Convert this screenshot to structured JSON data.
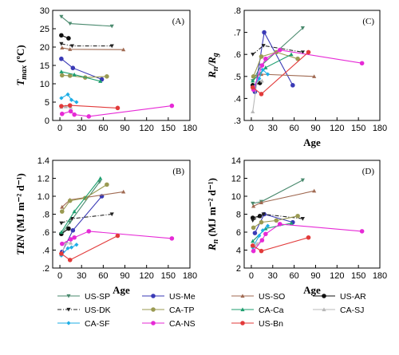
{
  "chart_data": {
    "type": "line",
    "series_styles": [
      {
        "name": "US-SP",
        "color": "#4a8a6e",
        "dash": "",
        "marker": "tri-down"
      },
      {
        "name": "US-Me",
        "color": "#3a3ab6",
        "dash": "",
        "marker": "circle"
      },
      {
        "name": "US-SO",
        "color": "#a06a52",
        "dash": "",
        "marker": "tri-up"
      },
      {
        "name": "US-AR",
        "color": "#111111",
        "dash": "",
        "marker": "circle"
      },
      {
        "name": "US-DK",
        "color": "#222222",
        "dash": "5,2,1,2",
        "marker": "tri-down"
      },
      {
        "name": "CA-TP",
        "color": "#9a9a52",
        "dash": "",
        "marker": "circle"
      },
      {
        "name": "CA-Ca",
        "color": "#1c9e6e",
        "dash": "",
        "marker": "tri-up"
      },
      {
        "name": "CA-SJ",
        "color": "#b8b8b8",
        "dash": "",
        "marker": "tri-up"
      },
      {
        "name": "CA-SF",
        "color": "#1eaee6",
        "dash": "",
        "marker": "diamond"
      },
      {
        "name": "CA-NS",
        "color": "#e62ad6",
        "dash": "",
        "marker": "circle"
      },
      {
        "name": "US-Bn",
        "color": "#e23a3a",
        "dash": "",
        "marker": "circle"
      }
    ],
    "panels": [
      {
        "id": "A",
        "panel_label": "(A)",
        "ylabel_main": "T",
        "ylabel_sub": "max",
        "ylabel_unit": " (ºC)",
        "xlabel": "",
        "xlim": [
          -10,
          180
        ],
        "ylim": [
          0,
          30
        ],
        "yticks": [
          "0",
          "5",
          "10",
          "15",
          "20",
          "25",
          "30"
        ],
        "ytick_values": [
          0,
          5,
          10,
          15,
          20,
          25,
          30
        ],
        "xticks": [
          "0",
          "30",
          "60",
          "90",
          "120",
          "150",
          "180"
        ],
        "xtick_values": [
          0,
          30,
          60,
          90,
          120,
          150,
          180
        ],
        "series": [
          {
            "name": "US-SP",
            "x": [
              2,
              14,
              72
            ],
            "y": [
              28.3,
              26.4,
              25.7
            ]
          },
          {
            "name": "US-Me",
            "x": [
              2,
              18,
              58
            ],
            "y": [
              16.8,
              14.3,
              11.2
            ]
          },
          {
            "name": "US-SO",
            "x": [
              3,
              14,
              88
            ],
            "y": [
              19.8,
              19.4,
              19.3
            ]
          },
          {
            "name": "US-AR",
            "x": [
              2,
              12
            ],
            "y": [
              23.2,
              22.4
            ]
          },
          {
            "name": "US-DK",
            "x": [
              2,
              17,
              72
            ],
            "y": [
              20.9,
              20.3,
              20.3
            ]
          },
          {
            "name": "CA-TP",
            "x": [
              3,
              14,
              35,
              65
            ],
            "y": [
              12.3,
              12.2,
              11.7,
              12.0
            ]
          },
          {
            "name": "CA-Ca",
            "x": [
              2,
              20,
              56
            ],
            "y": [
              13.3,
              12.5,
              10.7
            ]
          },
          {
            "name": "CA-SJ",
            "x": [
              2,
              8,
              15
            ],
            "y": [
              3.6,
              3.8,
              3.6
            ]
          },
          {
            "name": "CA-SF",
            "x": [
              2,
              11,
              16,
              23
            ],
            "y": [
              6.1,
              7.1,
              5.6,
              5.0
            ]
          },
          {
            "name": "CA-NS",
            "x": [
              3,
              15,
              20,
              40,
              155
            ],
            "y": [
              1.8,
              2.5,
              1.6,
              1.1,
              4.0
            ]
          },
          {
            "name": "US-Bn",
            "x": [
              2,
              14,
              80
            ],
            "y": [
              3.9,
              4.1,
              3.4
            ]
          }
        ]
      },
      {
        "id": "C",
        "panel_label": "(C)",
        "ylabel_main": "R",
        "ylabel_sub": "n",
        "ylabel_mid": "/R",
        "ylabel_sub2": "g",
        "ylabel_unit": "",
        "xlabel": "Age",
        "xlim": [
          -10,
          180
        ],
        "ylim": [
          0.3,
          0.8
        ],
        "yticks": [
          ".3",
          ".4",
          ".5",
          ".6",
          ".7",
          ".8"
        ],
        "ytick_values": [
          0.3,
          0.4,
          0.5,
          0.6,
          0.7,
          0.8
        ],
        "xticks": [
          "0",
          "30",
          "60",
          "90",
          "120",
          "150",
          "180"
        ],
        "xtick_values": [
          0,
          30,
          60,
          90,
          120,
          150,
          180
        ],
        "series": [
          {
            "name": "US-SP",
            "x": [
              2,
              14,
              72
            ],
            "y": [
              0.48,
              0.55,
              0.72
            ]
          },
          {
            "name": "US-Me",
            "x": [
              5,
              18,
              58
            ],
            "y": [
              0.43,
              0.7,
              0.46
            ]
          },
          {
            "name": "US-SO",
            "x": [
              3,
              14,
              88
            ],
            "y": [
              0.5,
              0.51,
              0.5
            ]
          },
          {
            "name": "US-AR",
            "x": [
              2,
              12
            ],
            "y": [
              0.46,
              0.47
            ]
          },
          {
            "name": "US-DK",
            "x": [
              2,
              17,
              72
            ],
            "y": [
              0.6,
              0.64,
              0.61
            ]
          },
          {
            "name": "CA-TP",
            "x": [
              3,
              14,
              35,
              65
            ],
            "y": [
              0.5,
              0.59,
              0.61,
              0.58
            ]
          },
          {
            "name": "CA-Ca",
            "x": [
              2,
              20,
              56
            ],
            "y": [
              0.48,
              0.54,
              0.6
            ]
          },
          {
            "name": "CA-SJ",
            "x": [
              2,
              8,
              15
            ],
            "y": [
              0.34,
              0.48,
              0.48
            ]
          },
          {
            "name": "CA-SF",
            "x": [
              2,
              11,
              16,
              23
            ],
            "y": [
              0.45,
              0.49,
              0.53,
              0.51
            ]
          },
          {
            "name": "CA-NS",
            "x": [
              3,
              15,
              20,
              40,
              155
            ],
            "y": [
              0.44,
              0.55,
              0.58,
              0.62,
              0.56
            ]
          },
          {
            "name": "US-Bn",
            "x": [
              2,
              14,
              80
            ],
            "y": [
              0.45,
              0.42,
              0.61
            ]
          }
        ]
      },
      {
        "id": "B",
        "panel_label": "(B)",
        "ylabel_main": "TRN",
        "ylabel_sub": "",
        "ylabel_unit": " (MJ m⁻² d⁻¹)",
        "xlabel": "Age",
        "xlim": [
          -10,
          180
        ],
        "ylim": [
          0.2,
          1.4
        ],
        "yticks": [
          ".2",
          ".4",
          ".6",
          ".8",
          "1.0",
          "1.2",
          "1.4"
        ],
        "ytick_values": [
          0.2,
          0.4,
          0.6,
          0.8,
          1.0,
          1.2,
          1.4
        ],
        "xticks": [
          "0",
          "30",
          "60",
          "90",
          "120",
          "150",
          "180"
        ],
        "xtick_values": [
          0,
          30,
          60,
          90,
          120,
          150,
          180
        ],
        "series": [
          {
            "name": "US-SP",
            "x": [
              2,
              14,
              55
            ],
            "y": [
              0.58,
              0.71,
              1.16
            ]
          },
          {
            "name": "US-Me",
            "x": [
              3,
              18,
              58
            ],
            "y": [
              0.38,
              0.62,
              1.0
            ]
          },
          {
            "name": "US-SO",
            "x": [
              3,
              14,
              88
            ],
            "y": [
              0.88,
              0.96,
              1.05
            ]
          },
          {
            "name": "US-AR",
            "x": [
              2,
              12
            ],
            "y": [
              0.58,
              0.64
            ]
          },
          {
            "name": "US-DK",
            "x": [
              2,
              17,
              72
            ],
            "y": [
              0.7,
              0.75,
              0.8
            ]
          },
          {
            "name": "CA-TP",
            "x": [
              3,
              14,
              35,
              65
            ],
            "y": [
              0.83,
              0.95,
              0.98,
              1.13
            ]
          },
          {
            "name": "CA-Ca",
            "x": [
              2,
              20,
              56
            ],
            "y": [
              0.6,
              0.83,
              1.2
            ]
          },
          {
            "name": "CA-SJ",
            "x": [
              2,
              8,
              15
            ],
            "y": [
              0.35,
              0.48,
              0.48
            ]
          },
          {
            "name": "CA-SF",
            "x": [
              2,
              11,
              16,
              23
            ],
            "y": [
              0.34,
              0.42,
              0.43,
              0.46
            ]
          },
          {
            "name": "CA-NS",
            "x": [
              3,
              15,
              20,
              40,
              155
            ],
            "y": [
              0.47,
              0.52,
              0.54,
              0.61,
              0.53
            ]
          },
          {
            "name": "US-Bn",
            "x": [
              2,
              14,
              80
            ],
            "y": [
              0.36,
              0.29,
              0.56
            ]
          }
        ]
      },
      {
        "id": "D",
        "panel_label": "(D)",
        "ylabel_main": "R",
        "ylabel_sub": "n",
        "ylabel_unit": " (MJ m⁻² d⁻¹)",
        "xlabel": "Age",
        "xlim": [
          -10,
          180
        ],
        "ylim": [
          2,
          14
        ],
        "yticks": [
          "2",
          "4",
          "6",
          "8",
          "10",
          "12",
          "14"
        ],
        "ytick_values": [
          2,
          4,
          6,
          8,
          10,
          12,
          14
        ],
        "xticks": [
          "0",
          "30",
          "60",
          "90",
          "120",
          "150",
          "180"
        ],
        "xtick_values": [
          0,
          30,
          60,
          90,
          120,
          150,
          180
        ],
        "series": [
          {
            "name": "US-SP",
            "x": [
              2,
              14,
              72
            ],
            "y": [
              9.2,
              9.4,
              11.8
            ]
          },
          {
            "name": "US-Me",
            "x": [
              5,
              18,
              58
            ],
            "y": [
              5.9,
              8.0,
              7.1
            ]
          },
          {
            "name": "US-SO",
            "x": [
              3,
              14,
              88
            ],
            "y": [
              8.9,
              9.3,
              10.6
            ]
          },
          {
            "name": "US-AR",
            "x": [
              2,
              12
            ],
            "y": [
              7.6,
              7.8
            ]
          },
          {
            "name": "US-DK",
            "x": [
              2,
              17,
              72
            ],
            "y": [
              7.3,
              8.0,
              7.5
            ]
          },
          {
            "name": "CA-TP",
            "x": [
              3,
              14,
              35,
              65
            ],
            "y": [
              6.5,
              7.1,
              7.3,
              7.8
            ]
          },
          {
            "name": "CA-Ca",
            "x": [
              2,
              20,
              56
            ],
            "y": [
              5.0,
              6.4,
              7.0
            ]
          },
          {
            "name": "CA-SJ",
            "x": [
              2,
              8,
              15
            ],
            "y": [
              4.0,
              4.7,
              5.1
            ]
          },
          {
            "name": "CA-SF",
            "x": [
              2,
              11,
              16,
              23
            ],
            "y": [
              4.3,
              5.6,
              6.2,
              6.7
            ]
          },
          {
            "name": "CA-NS",
            "x": [
              3,
              15,
              20,
              40,
              155
            ],
            "y": [
              3.9,
              5.1,
              5.8,
              6.9,
              6.1
            ]
          },
          {
            "name": "US-Bn",
            "x": [
              2,
              14,
              80
            ],
            "y": [
              4.5,
              3.9,
              5.4
            ]
          }
        ]
      }
    ]
  },
  "legend": {
    "items": [
      "US-SP",
      "US-Me",
      "US-SO",
      "US-AR",
      "US-DK",
      "CA-TP",
      "CA-Ca",
      "CA-SJ",
      "CA-SF",
      "CA-NS",
      "US-Bn"
    ]
  }
}
